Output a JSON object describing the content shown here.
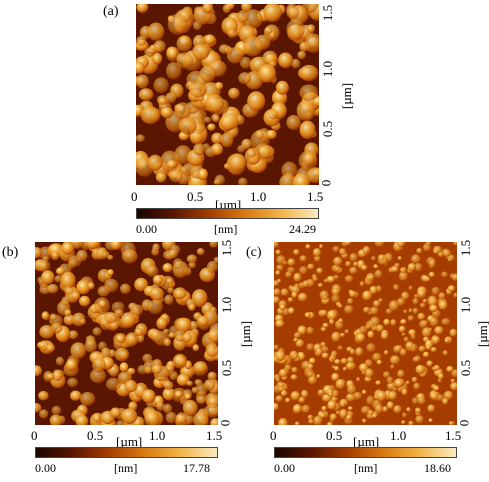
{
  "panels": {
    "a": {
      "label": "(a)",
      "x_ticks": [
        "0",
        "0.5",
        "1.0",
        "1.5"
      ],
      "y_ticks": [
        "0",
        "0.5",
        "1.0",
        "1.5"
      ],
      "x_unit": "[µm]",
      "y_unit": "[µm]",
      "cb_min": "0.00",
      "cb_unit": "[nm]",
      "cb_max": "24.29"
    },
    "b": {
      "label": "(b)",
      "x_ticks": [
        "0",
        "0.5",
        "1.0",
        "1.5"
      ],
      "y_ticks": [
        "0",
        "0.5",
        "1.0",
        "1.5"
      ],
      "x_unit": "[µm]",
      "y_unit": "[µm]",
      "cb_min": "0.00",
      "cb_unit": "[nm]",
      "cb_max": "17.78"
    },
    "c": {
      "label": "(c)",
      "x_ticks": [
        "0",
        "0.5",
        "1.0",
        "1.5"
      ],
      "y_ticks": [
        "0",
        "0.5",
        "1.0",
        "1.5"
      ],
      "x_unit": "[µm]",
      "y_unit": "[µm]",
      "cb_min": "0.00",
      "cb_unit": "[nm]",
      "cb_max": "18.60"
    }
  },
  "colormap": [
    "#1a0600",
    "#5a1600",
    "#a53d00",
    "#d87a12",
    "#f2b54a",
    "#fbeac0"
  ]
}
